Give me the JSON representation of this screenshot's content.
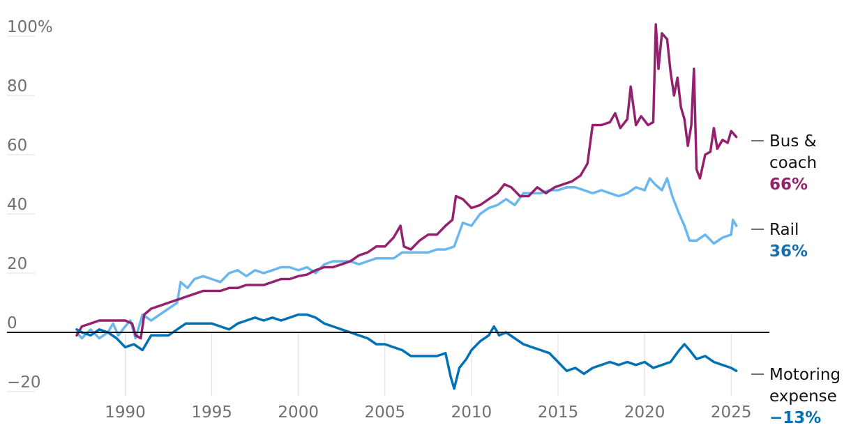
{
  "chart_data": {
    "type": "line",
    "x_ticks": [
      "1990",
      "1995",
      "2000",
      "2005",
      "2010",
      "2015",
      "2020",
      "2025"
    ],
    "y_ticks": [
      "100%",
      "80",
      "60",
      "40",
      "20",
      "0",
      "−20"
    ],
    "ylim": [
      -22,
      104
    ],
    "xlim": [
      1984.5,
      2026.5
    ],
    "grid": "horizontal",
    "zero_line": true,
    "series": [
      {
        "label_lines": [
          "Bus &",
          "coach"
        ],
        "end_label": "66%",
        "color": "#94216e",
        "points": [
          [
            1987.2,
            -1
          ],
          [
            1987.5,
            2
          ],
          [
            1988,
            3
          ],
          [
            1988.5,
            4
          ],
          [
            1989,
            4
          ],
          [
            1989.5,
            4
          ],
          [
            1990,
            4
          ],
          [
            1990.4,
            3
          ],
          [
            1990.6,
            -1
          ],
          [
            1990.9,
            -2
          ],
          [
            1991.1,
            6
          ],
          [
            1991.5,
            8
          ],
          [
            1992,
            9
          ],
          [
            1992.5,
            10
          ],
          [
            1993,
            11
          ],
          [
            1993.5,
            12
          ],
          [
            1994,
            13
          ],
          [
            1994.5,
            14
          ],
          [
            1995,
            14
          ],
          [
            1995.5,
            14
          ],
          [
            1996,
            15
          ],
          [
            1996.5,
            15
          ],
          [
            1997,
            16
          ],
          [
            1997.5,
            16
          ],
          [
            1998,
            16
          ],
          [
            1998.5,
            17
          ],
          [
            1999,
            18
          ],
          [
            1999.5,
            18
          ],
          [
            2000,
            19
          ],
          [
            2000.5,
            19.5
          ],
          [
            2001,
            21
          ],
          [
            2001.5,
            22
          ],
          [
            2002,
            22
          ],
          [
            2002.5,
            23
          ],
          [
            2003,
            24
          ],
          [
            2003.5,
            26
          ],
          [
            2004,
            27
          ],
          [
            2004.5,
            29
          ],
          [
            2005,
            29
          ],
          [
            2005.5,
            32
          ],
          [
            2005.9,
            36
          ],
          [
            2006.1,
            29
          ],
          [
            2006.5,
            28
          ],
          [
            2007,
            31
          ],
          [
            2007.5,
            33
          ],
          [
            2008,
            33
          ],
          [
            2008.5,
            36
          ],
          [
            2008.9,
            38
          ],
          [
            2009.1,
            46
          ],
          [
            2009.5,
            45
          ],
          [
            2010,
            42
          ],
          [
            2010.5,
            43
          ],
          [
            2011,
            45
          ],
          [
            2011.5,
            47
          ],
          [
            2011.9,
            50
          ],
          [
            2012.3,
            49
          ],
          [
            2012.8,
            46
          ],
          [
            2013.3,
            46
          ],
          [
            2013.8,
            49
          ],
          [
            2014.3,
            47
          ],
          [
            2014.8,
            49
          ],
          [
            2015.3,
            50
          ],
          [
            2015.8,
            51
          ],
          [
            2016.3,
            53
          ],
          [
            2016.7,
            57
          ],
          [
            2017,
            70
          ],
          [
            2017.5,
            70
          ],
          [
            2018,
            71
          ],
          [
            2018.3,
            74
          ],
          [
            2018.6,
            69
          ],
          [
            2019,
            72
          ],
          [
            2019.2,
            83
          ],
          [
            2019.5,
            70
          ],
          [
            2019.8,
            73
          ],
          [
            2020.2,
            70
          ],
          [
            2020.5,
            71
          ],
          [
            2020.65,
            104
          ],
          [
            2020.8,
            89
          ],
          [
            2021,
            101
          ],
          [
            2021.3,
            99
          ],
          [
            2021.5,
            88
          ],
          [
            2021.7,
            80
          ],
          [
            2021.9,
            86
          ],
          [
            2022.1,
            76
          ],
          [
            2022.3,
            72
          ],
          [
            2022.5,
            63
          ],
          [
            2022.7,
            70
          ],
          [
            2022.85,
            89
          ],
          [
            2023,
            55
          ],
          [
            2023.2,
            52
          ],
          [
            2023.5,
            60
          ],
          [
            2023.8,
            61
          ],
          [
            2024,
            69
          ],
          [
            2024.2,
            62
          ],
          [
            2024.5,
            65
          ],
          [
            2024.8,
            64
          ],
          [
            2025,
            68
          ],
          [
            2025.3,
            66
          ]
        ]
      },
      {
        "label_lines": [
          "Rail"
        ],
        "end_label": "36%",
        "color": "#1570b3",
        "lines_color": "#69b7ee",
        "points": [
          [
            1987.2,
            0
          ],
          [
            1987.5,
            -2
          ],
          [
            1988,
            1
          ],
          [
            1988.5,
            -2
          ],
          [
            1989,
            0
          ],
          [
            1989.3,
            3
          ],
          [
            1989.6,
            -1
          ],
          [
            1990,
            2
          ],
          [
            1990.3,
            4
          ],
          [
            1990.6,
            -2
          ],
          [
            1991,
            6
          ],
          [
            1991.5,
            4
          ],
          [
            1992,
            6
          ],
          [
            1992.5,
            8
          ],
          [
            1993,
            10
          ],
          [
            1993.2,
            17
          ],
          [
            1993.6,
            15
          ],
          [
            1994,
            18
          ],
          [
            1994.5,
            19
          ],
          [
            1995,
            18
          ],
          [
            1995.5,
            17
          ],
          [
            1996,
            20
          ],
          [
            1996.5,
            21
          ],
          [
            1997,
            19
          ],
          [
            1997.5,
            21
          ],
          [
            1998,
            20
          ],
          [
            1998.5,
            21
          ],
          [
            1999,
            22
          ],
          [
            1999.5,
            22
          ],
          [
            2000,
            21
          ],
          [
            2000.5,
            22
          ],
          [
            2001,
            20
          ],
          [
            2001.5,
            23
          ],
          [
            2002,
            24
          ],
          [
            2002.5,
            24
          ],
          [
            2003,
            24
          ],
          [
            2003.5,
            23
          ],
          [
            2004,
            24
          ],
          [
            2004.5,
            25
          ],
          [
            2005,
            25
          ],
          [
            2005.5,
            25
          ],
          [
            2006,
            27
          ],
          [
            2006.5,
            27
          ],
          [
            2007,
            27
          ],
          [
            2007.5,
            27
          ],
          [
            2008,
            28
          ],
          [
            2008.5,
            28
          ],
          [
            2009,
            29
          ],
          [
            2009.5,
            37
          ],
          [
            2010,
            36
          ],
          [
            2010.5,
            40
          ],
          [
            2011,
            42
          ],
          [
            2011.5,
            43
          ],
          [
            2012,
            45
          ],
          [
            2012.5,
            43
          ],
          [
            2013,
            47
          ],
          [
            2013.5,
            47
          ],
          [
            2014,
            47
          ],
          [
            2014.5,
            48
          ],
          [
            2015,
            48
          ],
          [
            2015.5,
            49
          ],
          [
            2016,
            49
          ],
          [
            2016.5,
            48
          ],
          [
            2017,
            47
          ],
          [
            2017.5,
            48
          ],
          [
            2018,
            47
          ],
          [
            2018.5,
            46
          ],
          [
            2019,
            47
          ],
          [
            2019.5,
            49
          ],
          [
            2020,
            48
          ],
          [
            2020.3,
            52
          ],
          [
            2020.6,
            50
          ],
          [
            2021,
            48
          ],
          [
            2021.3,
            52
          ],
          [
            2021.6,
            46
          ],
          [
            2022,
            40
          ],
          [
            2022.3,
            36
          ],
          [
            2022.6,
            31
          ],
          [
            2023,
            31
          ],
          [
            2023.5,
            33
          ],
          [
            2024,
            30
          ],
          [
            2024.5,
            32
          ],
          [
            2025,
            33
          ],
          [
            2025.1,
            38
          ],
          [
            2025.3,
            36
          ]
        ]
      },
      {
        "label_lines": [
          "Motoring",
          "expense"
        ],
        "end_label": "−13%",
        "color": "#0071b5",
        "points": [
          [
            1987.2,
            1
          ],
          [
            1987.5,
            0
          ],
          [
            1988,
            -1
          ],
          [
            1988.5,
            1
          ],
          [
            1989,
            0
          ],
          [
            1989.5,
            -2
          ],
          [
            1990,
            -5
          ],
          [
            1990.5,
            -4
          ],
          [
            1991,
            -6
          ],
          [
            1991.5,
            -1
          ],
          [
            1992,
            -1
          ],
          [
            1992.5,
            -1
          ],
          [
            1993,
            1
          ],
          [
            1993.5,
            3
          ],
          [
            1994,
            3
          ],
          [
            1994.5,
            3
          ],
          [
            1995,
            3
          ],
          [
            1995.5,
            2
          ],
          [
            1996,
            1
          ],
          [
            1996.5,
            3
          ],
          [
            1997,
            4
          ],
          [
            1997.5,
            5
          ],
          [
            1998,
            4
          ],
          [
            1998.5,
            5
          ],
          [
            1999,
            4
          ],
          [
            1999.5,
            5
          ],
          [
            2000,
            6
          ],
          [
            2000.5,
            6
          ],
          [
            2001,
            5
          ],
          [
            2001.5,
            3
          ],
          [
            2002,
            2
          ],
          [
            2002.5,
            1
          ],
          [
            2003,
            0
          ],
          [
            2003.5,
            -1
          ],
          [
            2004,
            -2
          ],
          [
            2004.5,
            -4
          ],
          [
            2005,
            -4
          ],
          [
            2005.5,
            -5
          ],
          [
            2006,
            -6
          ],
          [
            2006.5,
            -8
          ],
          [
            2007,
            -8
          ],
          [
            2007.5,
            -8
          ],
          [
            2008,
            -8
          ],
          [
            2008.5,
            -7
          ],
          [
            2008.8,
            -15
          ],
          [
            2009,
            -19
          ],
          [
            2009.3,
            -12
          ],
          [
            2009.7,
            -9
          ],
          [
            2010,
            -6
          ],
          [
            2010.5,
            -3
          ],
          [
            2011,
            -1
          ],
          [
            2011.3,
            2
          ],
          [
            2011.6,
            -1
          ],
          [
            2012,
            0
          ],
          [
            2012.5,
            -2
          ],
          [
            2013,
            -4
          ],
          [
            2013.5,
            -5
          ],
          [
            2014,
            -6
          ],
          [
            2014.5,
            -7
          ],
          [
            2015,
            -10
          ],
          [
            2015.5,
            -13
          ],
          [
            2016,
            -12
          ],
          [
            2016.5,
            -14
          ],
          [
            2017,
            -12
          ],
          [
            2017.5,
            -11
          ],
          [
            2018,
            -10
          ],
          [
            2018.5,
            -11
          ],
          [
            2019,
            -10
          ],
          [
            2019.5,
            -11
          ],
          [
            2020,
            -10
          ],
          [
            2020.5,
            -12
          ],
          [
            2021,
            -11
          ],
          [
            2021.5,
            -10
          ],
          [
            2022,
            -6
          ],
          [
            2022.3,
            -4
          ],
          [
            2022.6,
            -6
          ],
          [
            2023,
            -9
          ],
          [
            2023.5,
            -8
          ],
          [
            2024,
            -10
          ],
          [
            2024.5,
            -11
          ],
          [
            2025,
            -12
          ],
          [
            2025.3,
            -13
          ]
        ]
      }
    ]
  }
}
